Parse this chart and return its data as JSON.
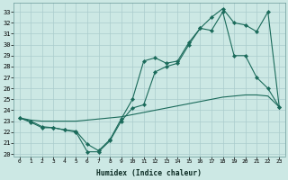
{
  "xlabel": "Humidex (Indice chaleur)",
  "bg_color": "#cce8e4",
  "grid_color": "#aacccc",
  "line_color": "#1a6a5a",
  "xlim": [
    -0.5,
    23.5
  ],
  "ylim": [
    19.8,
    33.8
  ],
  "line1_x": [
    0,
    1,
    2,
    3,
    4,
    5,
    6,
    7,
    8,
    9,
    10,
    11,
    12,
    13,
    14,
    15,
    16,
    17,
    18,
    19,
    20,
    21,
    22,
    23
  ],
  "line1_y": [
    23.3,
    23.0,
    22.5,
    22.4,
    22.2,
    22.1,
    20.9,
    20.3,
    21.3,
    23.2,
    25.0,
    28.5,
    28.8,
    28.3,
    28.5,
    30.2,
    31.5,
    31.3,
    33.0,
    29.0,
    29.0,
    27.0,
    26.0,
    24.3
  ],
  "line2_x": [
    0,
    1,
    2,
    3,
    4,
    5,
    6,
    7,
    8,
    9,
    10,
    11,
    12,
    13,
    14,
    15,
    16,
    17,
    18,
    19,
    20,
    21,
    22,
    23
  ],
  "line2_y": [
    23.3,
    23.1,
    23.0,
    23.0,
    23.0,
    23.0,
    23.1,
    23.2,
    23.3,
    23.4,
    23.6,
    23.8,
    24.0,
    24.2,
    24.4,
    24.6,
    24.8,
    25.0,
    25.2,
    25.3,
    25.4,
    25.4,
    25.3,
    24.3
  ],
  "line3_x": [
    0,
    1,
    2,
    3,
    4,
    5,
    6,
    7,
    8,
    9,
    10,
    11,
    12,
    13,
    14,
    15,
    16,
    17,
    18,
    19,
    20,
    21,
    22,
    23
  ],
  "line3_y": [
    23.3,
    22.9,
    22.4,
    22.4,
    22.2,
    22.0,
    20.2,
    20.2,
    21.2,
    23.0,
    24.2,
    24.5,
    27.5,
    28.0,
    28.3,
    30.0,
    31.5,
    32.5,
    33.3,
    32.0,
    31.8,
    31.2,
    33.0,
    24.3
  ],
  "xticks": [
    0,
    1,
    2,
    3,
    4,
    5,
    6,
    7,
    8,
    9,
    10,
    11,
    12,
    13,
    14,
    15,
    16,
    17,
    18,
    19,
    20,
    21,
    22,
    23
  ],
  "yticks": [
    20,
    21,
    22,
    23,
    24,
    25,
    26,
    27,
    28,
    29,
    30,
    31,
    32,
    33
  ]
}
